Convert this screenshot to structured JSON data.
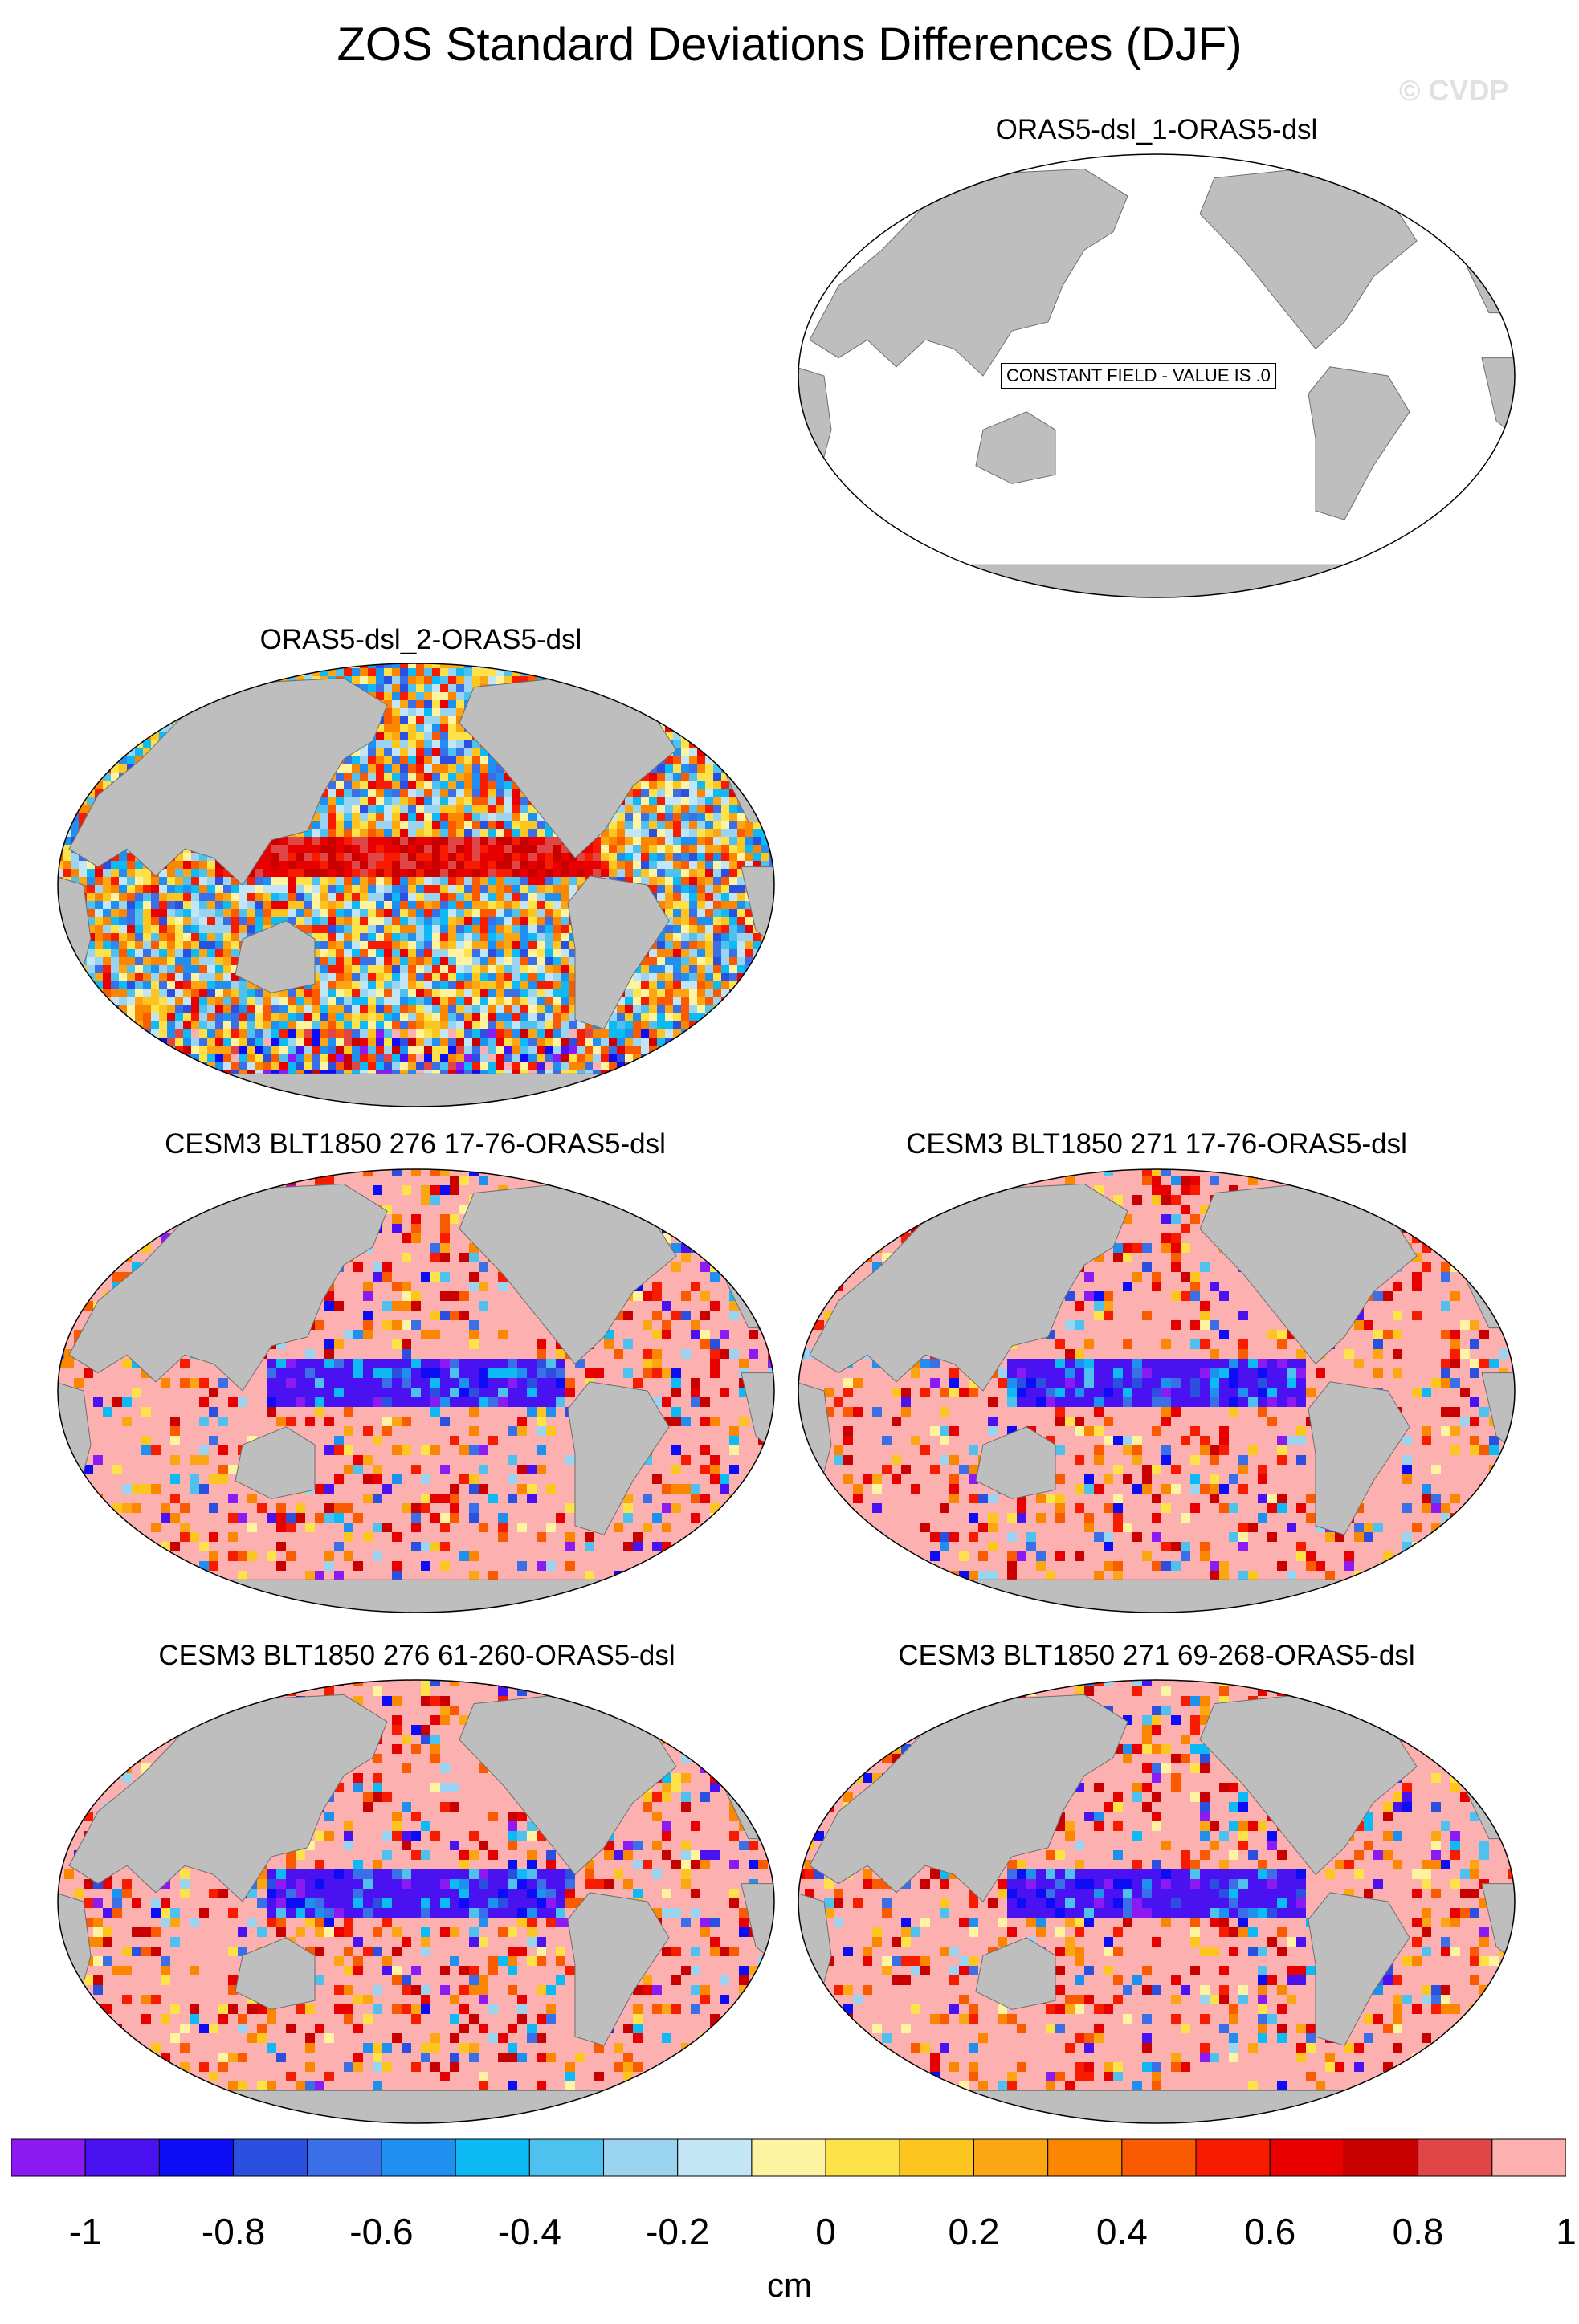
{
  "title": "ZOS Standard Deviations Differences (DJF)",
  "watermark": "© CVDP",
  "panels": [
    {
      "title": "ORAS5-dsl_1-ORAS5-dsl",
      "field": "constant",
      "label": "CONSTANT FIELD - VALUE IS .0"
    },
    {
      "title": "ORAS5-dsl_2-ORAS5-dsl",
      "field": "noisy"
    },
    {
      "title": "CESM3 BLT1850 276 17-76-ORAS5-dsl",
      "field": "model"
    },
    {
      "title": "CESM3 BLT1850 271 17-76-ORAS5-dsl",
      "field": "model"
    },
    {
      "title": "CESM3 BLT1850 276 61-260-ORAS5-dsl",
      "field": "model"
    },
    {
      "title": "CESM3 BLT1850 271 69-268-ORAS5-dsl",
      "field": "model"
    }
  ],
  "colorbar": {
    "colors": [
      "#8b1bf2",
      "#4a12f0",
      "#0c0cf5",
      "#2b50e0",
      "#3a6fe8",
      "#1f8ff0",
      "#0ebaf5",
      "#4fc1ee",
      "#9bd4f0",
      "#c3e6f6",
      "#fdf3a0",
      "#fde24a",
      "#fcc520",
      "#fba612",
      "#fb8600",
      "#fa5a00",
      "#f71c00",
      "#e80000",
      "#c80000",
      "#e04646",
      "#fcb0b0"
    ],
    "tick_labels": [
      "-1",
      "-0.8",
      "-0.6",
      "-0.4",
      "-0.2",
      "0",
      "0.2",
      "0.4",
      "0.6",
      "0.8",
      "1"
    ],
    "units": "cm"
  }
}
